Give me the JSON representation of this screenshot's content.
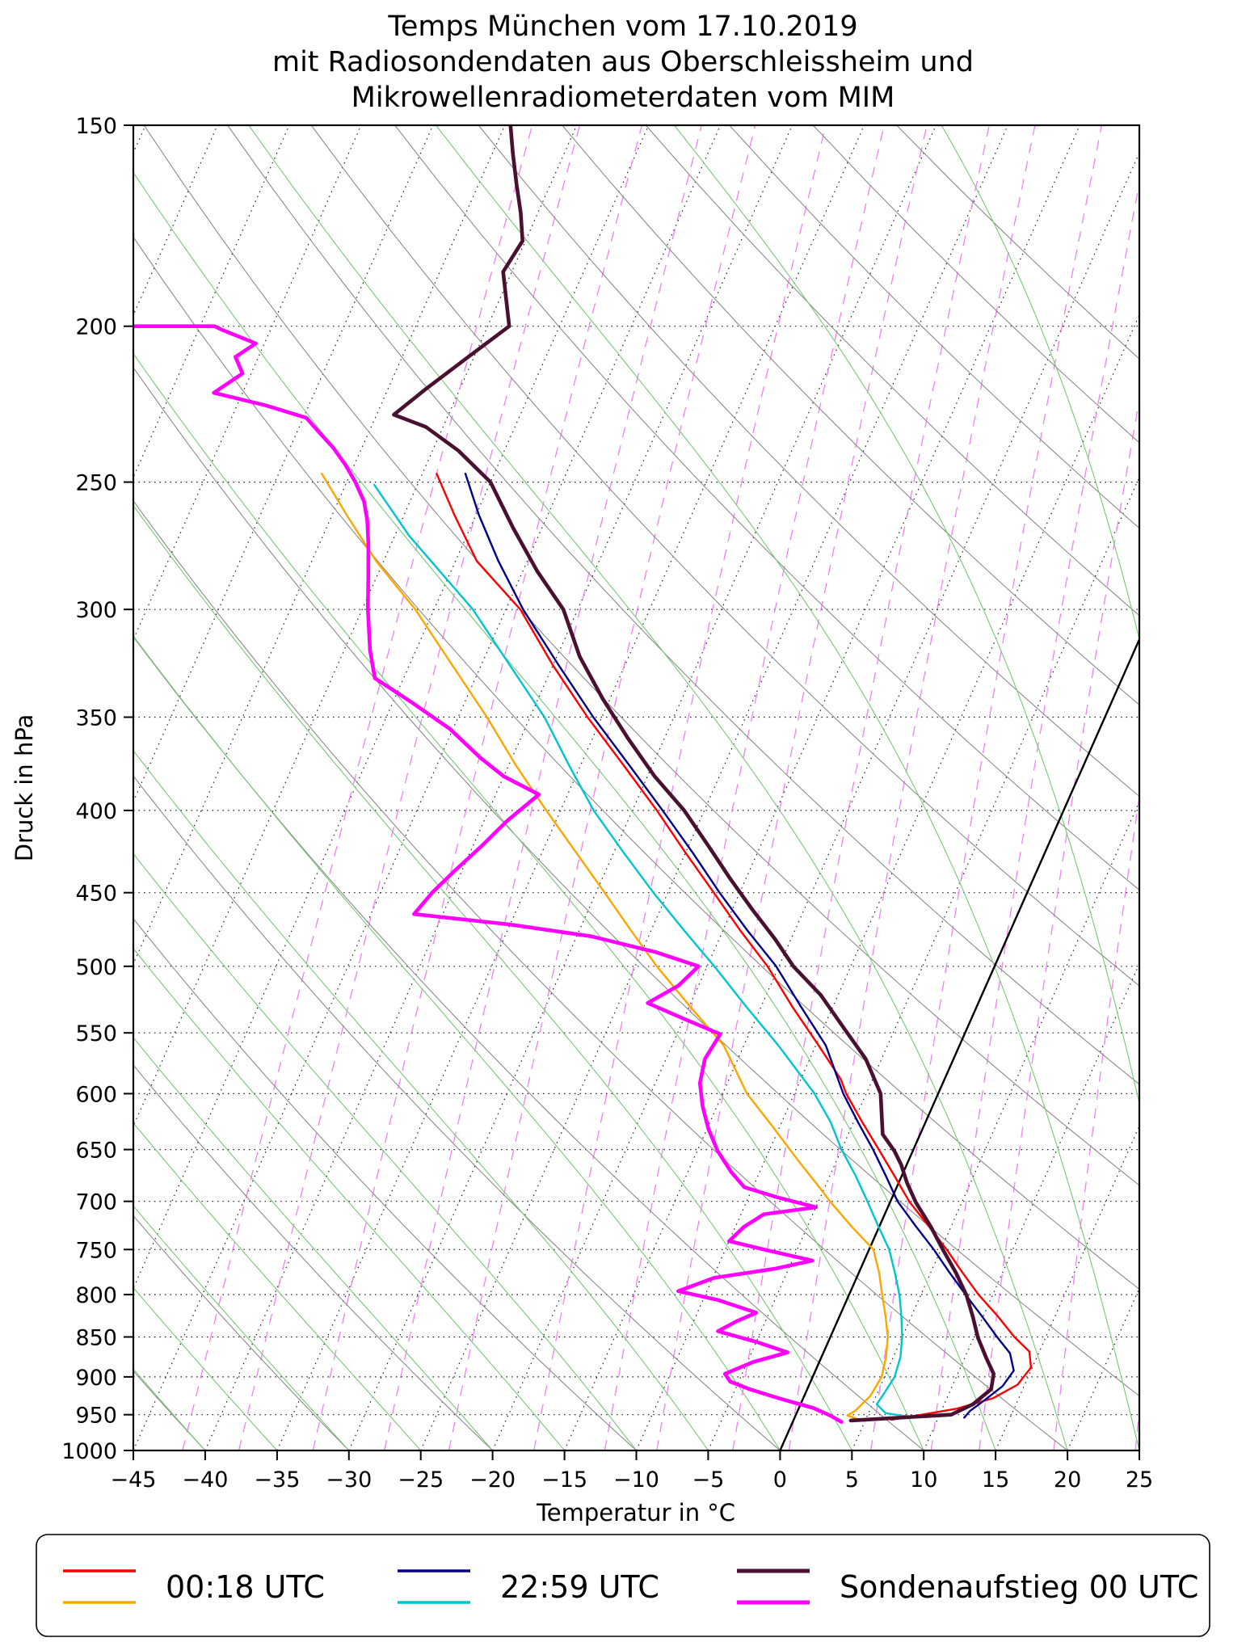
{
  "title": {
    "line1": "Temps München vom 17.10.2019",
    "line2": "mit Radiosondendaten aus Oberschleissheim und",
    "line3": "Mikrowellenradiometerdaten vom MIM"
  },
  "axes": {
    "x_label": "Temperatur in °C",
    "y_label": "Druck in hPa",
    "x_tick_values": [
      -45,
      -40,
      -35,
      -30,
      -25,
      -20,
      -15,
      -10,
      -5,
      0,
      5,
      10,
      15,
      20,
      25
    ],
    "x_tick_labels": [
      "−45",
      "−40",
      "−35",
      "−30",
      "−25",
      "−20",
      "−15",
      "−10",
      "−5",
      "0",
      "5",
      "10",
      "15",
      "20",
      "25"
    ],
    "y_tick_values": [
      150,
      200,
      250,
      300,
      350,
      400,
      450,
      500,
      550,
      600,
      650,
      700,
      750,
      800,
      850,
      900,
      950,
      1000
    ],
    "y_tick_labels": [
      "150",
      "200",
      "250",
      "300",
      "350",
      "400",
      "450",
      "500",
      "550",
      "600",
      "650",
      "700",
      "750",
      "800",
      "850",
      "900",
      "950",
      "1000"
    ]
  },
  "legend": [
    {
      "label": "00:18 UTC",
      "colors": [
        "#ff0000",
        "#ffa500"
      ]
    },
    {
      "label": "22:59 UTC",
      "colors": [
        "#00008b",
        "#00c5cd"
      ]
    },
    {
      "label": "Sondenaufstieg 00 UTC",
      "colors": [
        "#4a1030",
        "#ff00ff"
      ]
    }
  ],
  "chart_data": {
    "type": "line",
    "projection": "skew-t-log-p",
    "title": "Temps München vom 17.10.2019 mit Radiosondendaten aus Oberschleissheim und Mikrowellenradiometerdaten vom MIM",
    "xlabel": "Temperatur in °C",
    "ylabel": "Druck in hPa",
    "x_range_at_1000hpa": [
      -45,
      25
    ],
    "pressure_range_hpa": [
      150,
      1000
    ],
    "y_scale": "log",
    "y_inverted": true,
    "grid": {
      "pressure_lines_hpa": [
        150,
        200,
        250,
        300,
        350,
        400,
        450,
        500,
        550,
        600,
        650,
        700,
        750,
        800,
        850,
        900,
        950,
        1000
      ],
      "isotherms_c": {
        "min": -85,
        "max": 25,
        "step": 5,
        "color": "#1a1a1a"
      },
      "highlight_isotherm_c": {
        "value": 0,
        "color": "#000000"
      },
      "dry_adiabats_theta_c": {
        "min": -40,
        "max": 140,
        "step": 10,
        "color": "#8a8a8a"
      },
      "moist_adiabats_thetaw_c": {
        "min": -60,
        "max": 35,
        "step": 5,
        "color": "#77c877"
      },
      "mixing_ratio_g_kg": [
        0.1,
        0.15,
        0.25,
        0.4,
        0.6,
        1,
        1.5,
        2,
        3,
        4,
        6,
        8,
        10,
        14,
        20
      ],
      "mixing_ratio_color": "#ef82ef"
    },
    "series": [
      {
        "id": "temp-0018-utc",
        "legend": "00:18 UTC",
        "color": "#ff0000",
        "width": 2.4,
        "points_T_p": [
          [
            -54,
            247
          ],
          [
            -51.5,
            262
          ],
          [
            -48.5,
            280
          ],
          [
            -44,
            300
          ],
          [
            -40,
            325
          ],
          [
            -36,
            350
          ],
          [
            -32,
            375
          ],
          [
            -28.3,
            400
          ],
          [
            -25,
            425
          ],
          [
            -21.8,
            450
          ],
          [
            -18.8,
            475
          ],
          [
            -15.8,
            500
          ],
          [
            -12.8,
            530
          ],
          [
            -9.8,
            560
          ],
          [
            -7.2,
            588
          ],
          [
            -6.4,
            600
          ],
          [
            -4.4,
            625
          ],
          [
            -2.4,
            650
          ],
          [
            -0.5,
            675
          ],
          [
            1.3,
            700
          ],
          [
            3.4,
            725
          ],
          [
            5.4,
            750
          ],
          [
            7.2,
            775
          ],
          [
            9,
            800
          ],
          [
            11,
            825
          ],
          [
            12.8,
            850
          ],
          [
            14.3,
            868
          ],
          [
            14.9,
            888
          ],
          [
            14.5,
            910
          ],
          [
            13.2,
            928
          ],
          [
            11,
            942
          ],
          [
            8.5,
            951
          ],
          [
            6.8,
            957
          ]
        ]
      },
      {
        "id": "dew-0018-utc",
        "legend": "00:18 UTC",
        "color": "#ffa500",
        "width": 2.4,
        "points_T_p": [
          [
            -62,
            247
          ],
          [
            -59,
            262
          ],
          [
            -55.5,
            280
          ],
          [
            -51.3,
            300
          ],
          [
            -47,
            325
          ],
          [
            -43,
            350
          ],
          [
            -39.5,
            375
          ],
          [
            -36,
            400
          ],
          [
            -32.6,
            425
          ],
          [
            -29.4,
            450
          ],
          [
            -26.4,
            475
          ],
          [
            -23.5,
            500
          ],
          [
            -19.9,
            530
          ],
          [
            -16.4,
            560
          ],
          [
            -13.3,
            600
          ],
          [
            -10.4,
            630
          ],
          [
            -7.7,
            660
          ],
          [
            -5.3,
            687
          ],
          [
            -4.2,
            700
          ],
          [
            -1.9,
            726
          ],
          [
            0.3,
            750
          ],
          [
            1.4,
            775
          ],
          [
            2.3,
            800
          ],
          [
            3.2,
            825
          ],
          [
            4,
            850
          ],
          [
            4.5,
            875
          ],
          [
            4.8,
            900
          ],
          [
            4.6,
            925
          ],
          [
            4,
            945
          ],
          [
            3.6,
            951
          ],
          [
            4.6,
            957
          ]
        ]
      },
      {
        "id": "temp-2259-utc",
        "legend": "22:59 UTC",
        "color": "#00008b",
        "width": 2.4,
        "points_T_p": [
          [
            -52,
            247
          ],
          [
            -49.8,
            262
          ],
          [
            -47,
            280
          ],
          [
            -43.8,
            300
          ],
          [
            -39.6,
            325
          ],
          [
            -35.6,
            350
          ],
          [
            -31.6,
            375
          ],
          [
            -27.9,
            400
          ],
          [
            -24.5,
            425
          ],
          [
            -21.4,
            450
          ],
          [
            -18.3,
            475
          ],
          [
            -15.2,
            500
          ],
          [
            -12.2,
            530
          ],
          [
            -9.3,
            560
          ],
          [
            -6.6,
            600
          ],
          [
            -4.7,
            625
          ],
          [
            -2.8,
            650
          ],
          [
            -1.1,
            675
          ],
          [
            0.5,
            700
          ],
          [
            2.5,
            725
          ],
          [
            4.5,
            750
          ],
          [
            6.3,
            775
          ],
          [
            8.1,
            800
          ],
          [
            9.9,
            825
          ],
          [
            11.6,
            850
          ],
          [
            13,
            870
          ],
          [
            13.8,
            892
          ],
          [
            13.5,
            912
          ],
          [
            12.7,
            930
          ],
          [
            12,
            945
          ],
          [
            11.8,
            954
          ]
        ]
      },
      {
        "id": "dew-2259-utc",
        "legend": "22:59 UTC",
        "color": "#00c5cd",
        "width": 2.4,
        "points_T_p": [
          [
            -58,
            251
          ],
          [
            -54,
            270
          ],
          [
            -47.3,
            300
          ],
          [
            -43,
            325
          ],
          [
            -39,
            350
          ],
          [
            -35.8,
            375
          ],
          [
            -32.7,
            400
          ],
          [
            -29.3,
            425
          ],
          [
            -26,
            450
          ],
          [
            -22.7,
            475
          ],
          [
            -19.5,
            500
          ],
          [
            -16,
            530
          ],
          [
            -12.6,
            560
          ],
          [
            -8.6,
            600
          ],
          [
            -6.6,
            625
          ],
          [
            -5,
            650
          ],
          [
            -3.2,
            675
          ],
          [
            -1.6,
            700
          ],
          [
            -0.1,
            725
          ],
          [
            1.4,
            750
          ],
          [
            2.5,
            775
          ],
          [
            3.5,
            800
          ],
          [
            4.3,
            825
          ],
          [
            5,
            850
          ],
          [
            5.5,
            875
          ],
          [
            5.7,
            900
          ],
          [
            5.5,
            920
          ],
          [
            5.3,
            936
          ],
          [
            6.2,
            948
          ],
          [
            8.4,
            954
          ]
        ]
      },
      {
        "id": "sonde-dew-00utc",
        "legend": "Sondenaufstieg 00 UTC",
        "color": "#ff00ff",
        "width": 4.6,
        "points_T_p": [
          [
            3.4,
            960
          ],
          [
            2.4,
            951
          ],
          [
            1,
            941
          ],
          [
            -1.5,
            929
          ],
          [
            -4,
            916
          ],
          [
            -5.6,
            906
          ],
          [
            -6.2,
            896
          ],
          [
            -4.6,
            881
          ],
          [
            -2.5,
            869
          ],
          [
            -5,
            856
          ],
          [
            -8,
            843
          ],
          [
            -7,
            831
          ],
          [
            -5.9,
            821
          ],
          [
            -9,
            806
          ],
          [
            -12,
            796
          ],
          [
            -9.9,
            781
          ],
          [
            -6,
            771
          ],
          [
            -3.6,
            762
          ],
          [
            -7,
            751
          ],
          [
            -10,
            741
          ],
          [
            -9.4,
            726
          ],
          [
            -8.4,
            713
          ],
          [
            -5,
            706
          ],
          [
            -8,
            696
          ],
          [
            -10.6,
            686
          ],
          [
            -12,
            671
          ],
          [
            -13.6,
            651
          ],
          [
            -14.9,
            631
          ],
          [
            -16,
            611
          ],
          [
            -16.9,
            591
          ],
          [
            -17.3,
            571
          ],
          [
            -17,
            551
          ],
          [
            -20,
            539
          ],
          [
            -23,
            527
          ],
          [
            -21.4,
            514
          ],
          [
            -20.6,
            500
          ],
          [
            -24,
            490
          ],
          [
            -29,
            479
          ],
          [
            -35,
            471
          ],
          [
            -42,
            464
          ],
          [
            -41.4,
            450
          ],
          [
            -40.5,
            436
          ],
          [
            -39.4,
            421
          ],
          [
            -38.4,
            406
          ],
          [
            -37,
            391
          ],
          [
            -40,
            381
          ],
          [
            -42.2,
            371
          ],
          [
            -45.2,
            356
          ],
          [
            -48.6,
            343
          ],
          [
            -52,
            331
          ],
          [
            -53.2,
            318
          ],
          [
            -54.6,
            300
          ],
          [
            -55.6,
            286
          ],
          [
            -56.6,
            273
          ],
          [
            -57.4,
            264
          ],
          [
            -58.2,
            257
          ],
          [
            -59.4,
            250
          ],
          [
            -60.6,
            244
          ],
          [
            -62,
            238
          ],
          [
            -63.4,
            233
          ],
          [
            -64.8,
            228
          ],
          [
            -68,
            224
          ],
          [
            -72,
            220
          ],
          [
            -70.6,
            214
          ],
          [
            -71.6,
            209
          ],
          [
            -70.6,
            205
          ],
          [
            -73.4,
            201
          ],
          [
            -74,
            200
          ],
          [
            -79.7,
            200
          ]
        ]
      },
      {
        "id": "sonde-temp-00utc",
        "legend": "Sondenaufstieg 00 UTC",
        "color": "#4a1030",
        "width": 4.6,
        "points_T_p": [
          [
            4,
            958
          ],
          [
            10.8,
            950
          ],
          [
            12,
            936
          ],
          [
            12.8,
            916
          ],
          [
            12.5,
            896
          ],
          [
            11.5,
            876
          ],
          [
            10.3,
            851
          ],
          [
            9.3,
            826
          ],
          [
            8.2,
            801
          ],
          [
            6.8,
            776
          ],
          [
            5.2,
            751
          ],
          [
            3.6,
            726
          ],
          [
            1.8,
            701
          ],
          [
            0.6,
            682
          ],
          [
            -0.4,
            664
          ],
          [
            -1.3,
            651
          ],
          [
            -2.6,
            636
          ],
          [
            -4,
            600
          ],
          [
            -6.1,
            571
          ],
          [
            -8.6,
            546
          ],
          [
            -11.2,
            521
          ],
          [
            -14,
            500
          ],
          [
            -16.1,
            481
          ],
          [
            -18.6,
            461
          ],
          [
            -21.1,
            441
          ],
          [
            -23.6,
            421
          ],
          [
            -26.4,
            400
          ],
          [
            -29.5,
            381
          ],
          [
            -32.5,
            361
          ],
          [
            -35.5,
            341
          ],
          [
            -38.4,
            321
          ],
          [
            -41,
            300
          ],
          [
            -44,
            284
          ],
          [
            -47,
            267
          ],
          [
            -50,
            250
          ],
          [
            -53.2,
            239
          ],
          [
            -56.2,
            231
          ],
          [
            -58.8,
            227
          ],
          [
            -57.4,
            219
          ],
          [
            -55.4,
            209
          ],
          [
            -53.5,
            200
          ],
          [
            -54.6,
            192
          ],
          [
            -55.6,
            185
          ],
          [
            -55.2,
            177
          ],
          [
            -56.2,
            170
          ],
          [
            -57.4,
            163
          ],
          [
            -58.6,
            156
          ],
          [
            -59.6,
            150
          ]
        ]
      }
    ],
    "reference_line": {
      "name": "0 °C isotherm (solid)",
      "temperature_c": 0,
      "color": "#000000"
    }
  }
}
